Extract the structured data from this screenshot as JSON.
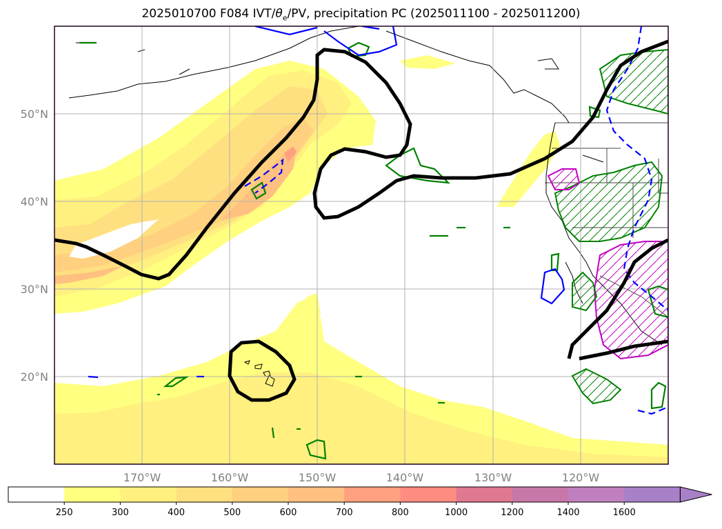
{
  "title": {
    "prefix": "2025010700 F084 IVT/",
    "theta": "θ",
    "sub": "e",
    "suffix": "/PV, precipitation PC (2025011100 - 2025011200)"
  },
  "axes": {
    "x_ticks": [
      "170°W",
      "160°W",
      "150°W",
      "140°W",
      "130°W",
      "120°W"
    ],
    "y_ticks": [
      "50°N",
      "40°N",
      "30°N",
      "20°N"
    ]
  },
  "colorbar": {
    "ticks": [
      "250",
      "300",
      "400",
      "500",
      "600",
      "700",
      "800",
      "1000",
      "1200",
      "1400",
      "1600"
    ],
    "colors": [
      "#ffffff",
      "#ffff80",
      "#fff080",
      "#ffe080",
      "#ffd080",
      "#ffc080",
      "#ffa080",
      "#ff8c80",
      "#e07890",
      "#c878a8",
      "#c080c0",
      "#a880c8"
    ]
  },
  "colors": {
    "pv_contour": "#000000",
    "theta_e_pos": "#008000",
    "theta_e_neg": "#0000ff",
    "precip": "#c000c0",
    "frame": "#200020"
  }
}
